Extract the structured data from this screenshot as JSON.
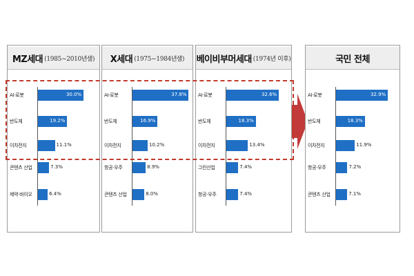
{
  "colors": {
    "bar": "#1f6fc5",
    "highlight": "#c0392b",
    "arrow": "#c23a3a",
    "header_bg": "#eeeeee"
  },
  "chart_data": [
    {
      "type": "bar",
      "title": "MZ세대",
      "subtitle": "(1985~2010년생)",
      "categories": [
        "AI·로봇",
        "반도체",
        "이차전지",
        "콘텐츠 산업",
        "제약·바이오"
      ],
      "values": [
        30.0,
        19.2,
        11.1,
        7.3,
        6.4
      ],
      "labels": [
        "30.0%",
        "19.2%",
        "11.1%",
        "7.3%",
        "6.4%"
      ]
    },
    {
      "type": "bar",
      "title": "X세대",
      "subtitle": "(1975~1984년생)",
      "categories": [
        "AI·로봇",
        "반도체",
        "이차전지",
        "항공·우주",
        "콘텐츠 산업"
      ],
      "values": [
        37.8,
        16.9,
        10.2,
        8.9,
        8.0
      ],
      "labels": [
        "37.8%",
        "16.9%",
        "10.2%",
        "8.9%",
        "8.0%"
      ]
    },
    {
      "type": "bar",
      "title": "베이비부머세대",
      "subtitle": "(1974년 이후)",
      "categories": [
        "AI·로봇",
        "반도체",
        "이차전지",
        "그린산업",
        "항공·우주"
      ],
      "values": [
        32.6,
        18.3,
        13.4,
        7.4,
        7.4
      ],
      "labels": [
        "32.6%",
        "18.3%",
        "13.4%",
        "7.4%",
        "7.4%"
      ]
    },
    {
      "type": "bar",
      "title": "국민 전체",
      "subtitle": "",
      "categories": [
        "AI·로봇",
        "반도체",
        "이차전지",
        "항공·우주",
        "콘텐츠 산업"
      ],
      "values": [
        32.9,
        18.3,
        11.9,
        7.2,
        7.1
      ],
      "labels": [
        "32.9%",
        "18.3%",
        "11.9%",
        "7.2%",
        "7.1%"
      ]
    }
  ]
}
